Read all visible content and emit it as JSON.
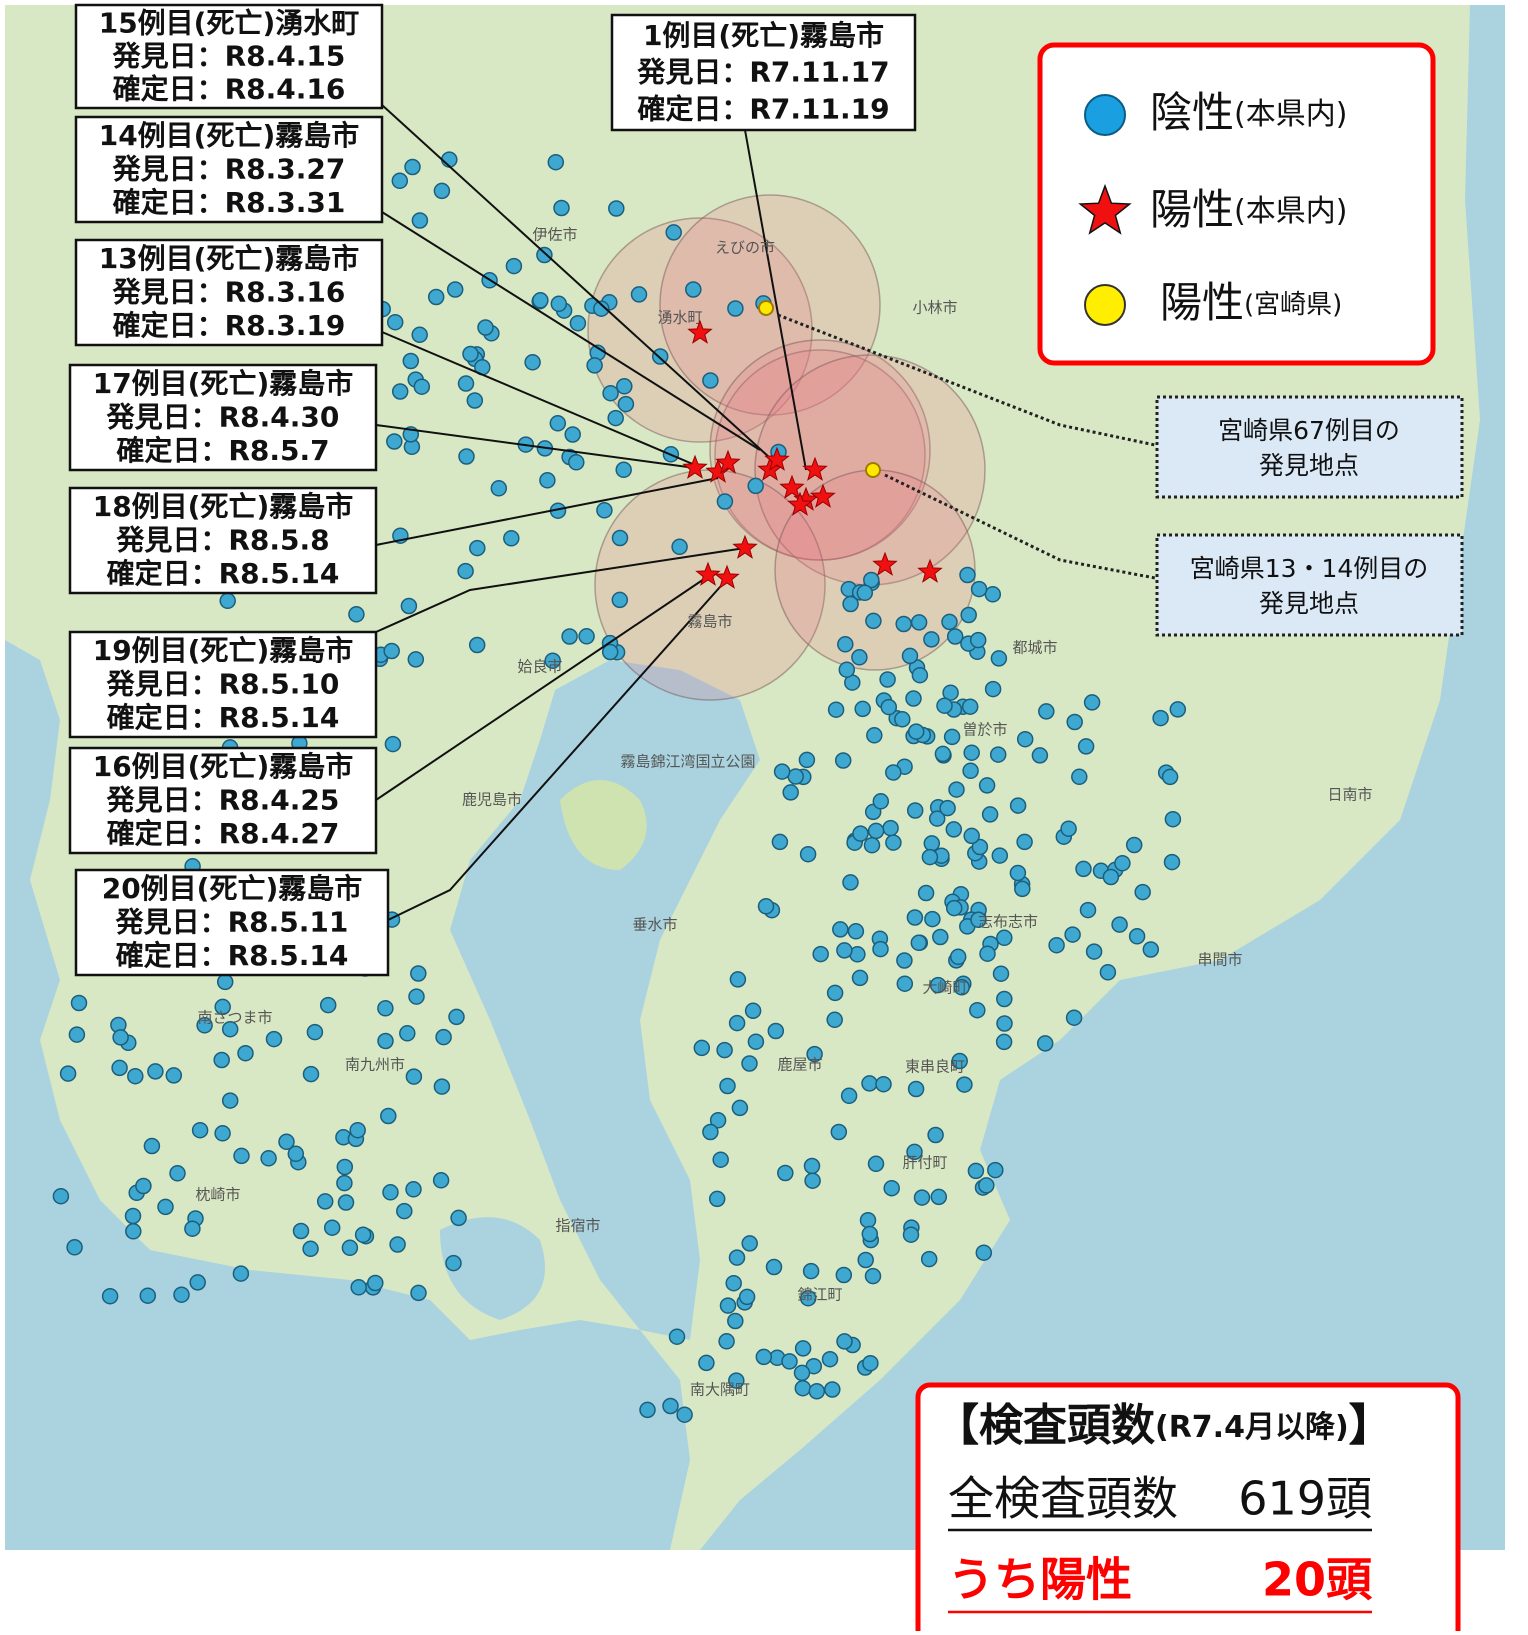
{
  "callouts": [
    {
      "title": "15例目(死亡)湧水町",
      "found": "発見日：R8.4.15",
      "confirmed": "確定日：R8.4.16"
    },
    {
      "title": "14例目(死亡)霧島市",
      "found": "発見日：R8.3.27",
      "confirmed": "確定日：R8.3.31"
    },
    {
      "title": "13例目(死亡)霧島市",
      "found": "発見日：R8.3.16",
      "confirmed": "確定日：R8.3.19"
    },
    {
      "title": "17例目(死亡)霧島市",
      "found": "発見日：R8.4.30",
      "confirmed": "確定日：R8.5.7"
    },
    {
      "title": "18例目(死亡)霧島市",
      "found": "発見日：R8.5.8",
      "confirmed": "確定日：R8.5.14"
    },
    {
      "title": "19例目(死亡)霧島市",
      "found": "発見日：R8.5.10",
      "confirmed": "確定日：R8.5.14"
    },
    {
      "title": "16例目(死亡)霧島市",
      "found": "発見日：R8.4.25",
      "confirmed": "確定日：R8.4.27"
    },
    {
      "title": "20例目(死亡)霧島市",
      "found": "発見日：R8.5.11",
      "confirmed": "確定日：R8.5.14"
    },
    {
      "title": "1例目(死亡)霧島市",
      "found": "発見日：R7.11.17",
      "confirmed": "確定日：R7.11.19"
    }
  ],
  "legend": [
    {
      "label": "陰性",
      "note": "(本県内)"
    },
    {
      "label": "陽性",
      "note": "(本県内)"
    },
    {
      "label": "陽性",
      "note": "(宮崎県)"
    }
  ],
  "notes": [
    {
      "line1": "宮崎県67例目の",
      "line2": "発見地点"
    },
    {
      "line1": "宮崎県13・14例目の",
      "line2": "発見地点"
    }
  ],
  "summary": {
    "heading": "【検査頭数",
    "period": "(R7.4月以降)",
    "close": "】",
    "total_label": "全検査頭数",
    "total_value": "619頭",
    "positive_label": "うち陽性",
    "positive_value": "20頭"
  },
  "places": [
    "伊佐市",
    "えびの市",
    "小林市",
    "湧水町",
    "姶良市",
    "霧島市",
    "都城市",
    "鹿児島市",
    "曽於市",
    "日南市",
    "志布志市",
    "串間市",
    "垂水市",
    "鹿屋市",
    "大崎町",
    "東串良町",
    "肝付町",
    "南さつま市",
    "南九州市",
    "枕崎市",
    "指宿市",
    "錦江町",
    "南大隅町",
    "霧島錦江湾国立公園"
  ]
}
